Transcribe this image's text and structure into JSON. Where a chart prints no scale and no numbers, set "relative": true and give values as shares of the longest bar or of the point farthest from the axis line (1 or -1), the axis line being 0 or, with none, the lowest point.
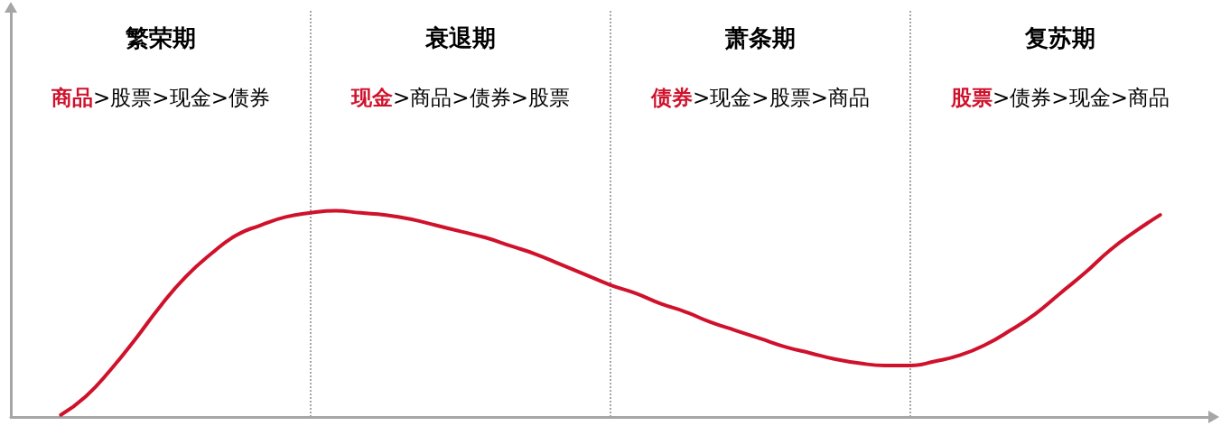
{
  "chart_data": {
    "type": "line",
    "relative": true,
    "marker": "none",
    "line_style": "solid",
    "grid": "x",
    "categories": [
      null,
      null,
      null,
      null,
      null,
      null,
      null,
      null,
      null,
      null,
      null,
      null,
      null,
      null,
      null,
      null,
      null,
      null,
      null,
      null,
      null,
      null,
      null,
      null,
      null,
      null,
      null,
      null,
      null,
      null,
      null,
      null,
      null,
      null,
      null,
      null,
      null,
      null,
      null,
      null,
      null,
      null,
      null,
      null,
      null,
      null,
      null,
      null,
      null
    ],
    "series": [
      {
        "color": "#d0112b",
        "values": [
          null,
          null,
          0.01,
          0.1,
          0.23,
          0.38,
          0.54,
          0.68,
          0.79,
          0.88,
          0.93,
          0.97,
          0.99,
          1,
          0.99,
          0.98,
          0.96,
          0.93,
          0.9,
          0.87,
          0.83,
          0.79,
          0.74,
          0.69,
          0.64,
          0.6,
          0.55,
          0.51,
          0.46,
          0.42,
          0.38,
          0.34,
          0.31,
          0.28,
          0.26,
          0.25,
          0.25,
          0.27,
          0.3,
          0.35,
          0.42,
          0.5,
          0.6,
          0.7,
          0.81,
          0.9,
          0.98,
          null,
          null
        ]
      }
    ],
    "annotations": [
      "繁荣期",
      "衰退期",
      "萧条期",
      "复苏期",
      "商品>股票>现金>债券",
      "现金>商品>债券>股票",
      "债券>现金>股票>商品",
      "股票>债券>现金>商品"
    ]
  }
}
